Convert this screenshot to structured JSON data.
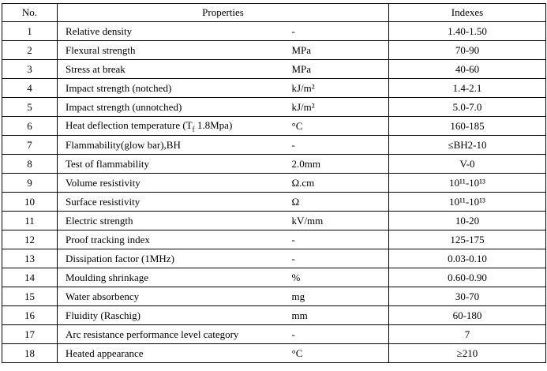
{
  "table": {
    "header": [
      "No.",
      "Properties",
      "Indexes"
    ],
    "rows": [
      [
        "1",
        "Relative density",
        "-",
        "1.40-1.50"
      ],
      [
        "2",
        "Flexural strength",
        "MPa",
        "70-90"
      ],
      [
        "3",
        "Stress at break",
        "MPa",
        "40-60"
      ],
      [
        "4",
        "Impact strength (notched)",
        "kJ/m²",
        "1.4-2.1"
      ],
      [
        "5",
        "Impact strength (unnotched)",
        "kJ/m²",
        "5.0-7.0"
      ],
      [
        "6",
        [
          "Heat deflection temperature (T",
          "f",
          " 1.8Mpa)"
        ],
        "°C",
        "160-185"
      ],
      [
        "7",
        "Flammability(glow bar),BH",
        "-",
        "≤BH2-10"
      ],
      [
        "8",
        "Test of flammability",
        "2.0mm",
        "V-0"
      ],
      [
        "9",
        "Volume resistivity",
        "Ω.cm",
        "10¹¹-10¹³"
      ],
      [
        "10",
        "Surface resistivity",
        "Ω",
        "10¹¹-10¹³"
      ],
      [
        "11",
        "Electric strength",
        "kV/mm",
        "10-20"
      ],
      [
        "12",
        "Proof tracking index",
        "-",
        "125-175"
      ],
      [
        "13",
        "Dissipation factor (1MHz)",
        "-",
        "0.03-0.10"
      ],
      [
        "14",
        "Moulding shrinkage",
        "%",
        "0.60-0.90"
      ],
      [
        "15",
        "Water absorbency",
        "mg",
        "30-70"
      ],
      [
        "16",
        "Fluidity (Raschig)",
        "mm",
        "60-180"
      ],
      [
        "17",
        "Arc resistance performance level category",
        "-",
        "7"
      ],
      [
        "18",
        "Heated appearance",
        "°C",
        "≥210"
      ]
    ]
  }
}
